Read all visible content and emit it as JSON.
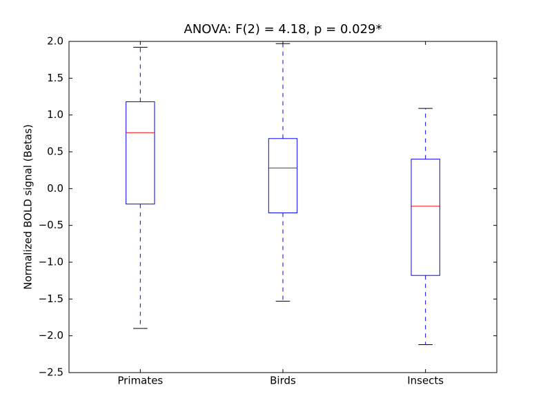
{
  "chart_data": {
    "type": "box",
    "title": "ANOVA: F(2) = 4.18, p = 0.029*",
    "y_label": "Normalized BOLD signal (Betas)",
    "categories": [
      "Primates",
      "Birds",
      "Insects"
    ],
    "whisker_high": [
      1.92,
      1.97,
      1.09
    ],
    "q3": [
      1.18,
      0.68,
      0.4
    ],
    "median": [
      0.76,
      0.28,
      -0.24
    ],
    "q1": [
      -0.21,
      -0.33,
      -1.18
    ],
    "whisker_low": [
      -1.9,
      -1.53,
      -2.12
    ],
    "box_color": "#0000ff",
    "median_color": "#ff0000",
    "cap_color": "#000000",
    "ylim": [
      -2.5,
      2.0
    ],
    "yticks": [
      {
        "value": -2.5,
        "label": "−2.5"
      },
      {
        "value": -2.0,
        "label": "−2.0"
      },
      {
        "value": -1.5,
        "label": "−1.5"
      },
      {
        "value": -1.0,
        "label": "−1.0"
      },
      {
        "value": -0.5,
        "label": "−0.5"
      },
      {
        "value": 0.0,
        "label": "0.0"
      },
      {
        "value": 0.5,
        "label": "0.5"
      },
      {
        "value": 1.0,
        "label": "1.0"
      },
      {
        "value": 1.5,
        "label": "1.5"
      },
      {
        "value": 2.0,
        "label": "2.0"
      }
    ]
  }
}
